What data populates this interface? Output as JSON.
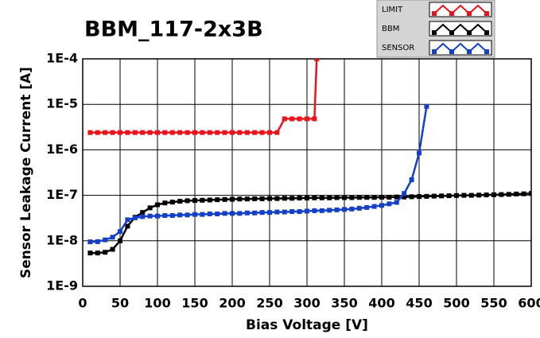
{
  "chart_data": {
    "type": "line",
    "title": "BBM_117-2x3B",
    "x_label": "Bias Voltage [V]",
    "y_label": "Sensor Leakage Current [A]",
    "xlim": [
      0,
      600
    ],
    "xticks": [
      0,
      50,
      100,
      150,
      200,
      250,
      300,
      350,
      400,
      450,
      500,
      550,
      600
    ],
    "ylim": [
      1e-09,
      0.0001
    ],
    "log_y": true,
    "grid": true,
    "legend_position": "top-right",
    "yticks": [
      {
        "value": 1e-09,
        "label": "1E-9"
      },
      {
        "value": 1e-08,
        "label": "1E-8"
      },
      {
        "value": 1e-07,
        "label": "1E-7"
      },
      {
        "value": 1e-06,
        "label": "1E-6"
      },
      {
        "value": 1e-05,
        "label": "1E-5"
      },
      {
        "value": 0.0001,
        "label": "1E-4"
      }
    ],
    "series": [
      {
        "name": "LIMIT",
        "color": "#e8141c",
        "x": [
          10,
          20,
          30,
          40,
          50,
          60,
          70,
          80,
          90,
          100,
          110,
          120,
          130,
          140,
          150,
          160,
          170,
          180,
          190,
          200,
          210,
          220,
          230,
          240,
          250,
          260,
          270,
          280,
          290,
          300,
          310,
          313
        ],
        "values": [
          2.4e-06,
          2.4e-06,
          2.4e-06,
          2.4e-06,
          2.4e-06,
          2.4e-06,
          2.4e-06,
          2.4e-06,
          2.4e-06,
          2.4e-06,
          2.4e-06,
          2.4e-06,
          2.4e-06,
          2.4e-06,
          2.4e-06,
          2.4e-06,
          2.4e-06,
          2.4e-06,
          2.4e-06,
          2.4e-06,
          2.4e-06,
          2.4e-06,
          2.4e-06,
          2.4e-06,
          2.4e-06,
          2.4e-06,
          4.8e-06,
          4.8e-06,
          4.8e-06,
          4.8e-06,
          4.8e-06,
          0.0001
        ]
      },
      {
        "name": "BBM",
        "color": "#000000",
        "x": [
          10,
          20,
          30,
          40,
          50,
          60,
          70,
          80,
          90,
          100,
          110,
          120,
          130,
          140,
          150,
          160,
          170,
          180,
          190,
          200,
          210,
          220,
          230,
          240,
          250,
          260,
          270,
          280,
          290,
          300,
          310,
          320,
          330,
          340,
          350,
          360,
          370,
          380,
          390,
          400,
          410,
          420,
          430,
          440,
          450,
          460,
          470,
          480,
          490,
          500,
          510,
          520,
          530,
          540,
          550,
          560,
          570,
          580,
          590,
          600
        ],
        "values": [
          5.4e-09,
          5.4e-09,
          5.6e-09,
          6.5e-09,
          1e-08,
          2.1e-08,
          3.3e-08,
          4.2e-08,
          5.3e-08,
          6.2e-08,
          6.8e-08,
          7.1e-08,
          7.4e-08,
          7.6e-08,
          7.7e-08,
          7.8e-08,
          7.9e-08,
          8e-08,
          8.1e-08,
          8.2e-08,
          8.3e-08,
          8.3e-08,
          8.4e-08,
          8.4e-08,
          8.5e-08,
          8.5e-08,
          8.6e-08,
          8.6e-08,
          8.7e-08,
          8.7e-08,
          8.8e-08,
          8.8e-08,
          8.8e-08,
          8.9e-08,
          8.9e-08,
          8.9e-08,
          9e-08,
          9e-08,
          9e-08,
          9.1e-08,
          9.1e-08,
          9.2e-08,
          9.2e-08,
          9.3e-08,
          9.4e-08,
          9.5e-08,
          9.6e-08,
          9.7e-08,
          9.8e-08,
          9.9e-08,
          1e-07,
          1e-07,
          1.01e-07,
          1.02e-07,
          1.03e-07,
          1.04e-07,
          1.05e-07,
          1.07e-07,
          1.08e-07,
          1.1e-07
        ]
      },
      {
        "name": "SENSOR",
        "color": "#1440c8",
        "x": [
          10,
          20,
          30,
          40,
          50,
          60,
          70,
          80,
          90,
          100,
          110,
          120,
          130,
          140,
          150,
          160,
          170,
          180,
          190,
          200,
          210,
          220,
          230,
          240,
          250,
          260,
          270,
          280,
          290,
          300,
          310,
          320,
          330,
          340,
          350,
          360,
          370,
          380,
          390,
          400,
          410,
          420,
          430,
          440,
          450,
          460
        ],
        "values": [
          9.5e-09,
          9.6e-09,
          1.05e-08,
          1.2e-08,
          1.6e-08,
          2.9e-08,
          3.2e-08,
          3.4e-08,
          3.5e-08,
          3.5e-08,
          3.6e-08,
          3.6e-08,
          3.7e-08,
          3.7e-08,
          3.8e-08,
          3.8e-08,
          3.9e-08,
          3.9e-08,
          4e-08,
          4e-08,
          4e-08,
          4.1e-08,
          4.1e-08,
          4.2e-08,
          4.2e-08,
          4.3e-08,
          4.3e-08,
          4.4e-08,
          4.4e-08,
          4.5e-08,
          4.6e-08,
          4.6e-08,
          4.7e-08,
          4.8e-08,
          4.9e-08,
          5e-08,
          5.2e-08,
          5.4e-08,
          5.7e-08,
          6e-08,
          6.5e-08,
          7e-08,
          1.1e-07,
          2.2e-07,
          8.5e-07,
          9e-06
        ]
      }
    ]
  }
}
